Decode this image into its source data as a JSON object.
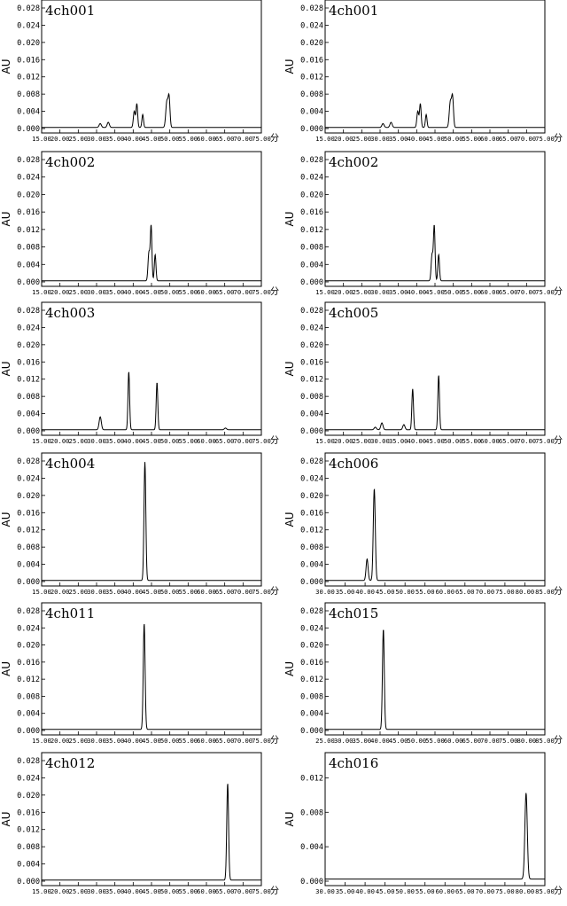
{
  "y_axis_label": "AU",
  "x_unit_label": "分",
  "chart_data": [
    {
      "type": "line",
      "title": "4ch001",
      "xlim": [
        15,
        75
      ],
      "ylim": [
        0,
        0.028
      ],
      "xticks": [
        "15.00",
        "20.00",
        "25.00",
        "30.00",
        "35.00",
        "40.00",
        "45.00",
        "50.00",
        "55.00",
        "60.00",
        "65.00",
        "70.00",
        "75.00"
      ],
      "yticks": [
        "0.000",
        "0.004",
        "0.008",
        "0.012",
        "0.016",
        "0.020",
        "0.024",
        "0.028"
      ],
      "peaks": [
        [
          31.0,
          0.0009,
          0.3
        ],
        [
          33.2,
          0.0012,
          0.3
        ],
        [
          40.3,
          0.0038,
          0.25
        ],
        [
          41.0,
          0.0055,
          0.22
        ],
        [
          42.6,
          0.003,
          0.22
        ],
        [
          49.2,
          0.006,
          0.3
        ],
        [
          49.8,
          0.0068,
          0.25
        ]
      ]
    },
    {
      "type": "line",
      "title": "4ch001",
      "xlim": [
        15,
        75
      ],
      "ylim": [
        0,
        0.028
      ],
      "xticks": [
        "15.00",
        "20.00",
        "25.00",
        "30.00",
        "35.00",
        "40.00",
        "45.00",
        "50.00",
        "55.00",
        "60.00",
        "65.00",
        "70.00",
        "75.00"
      ],
      "yticks": [
        "0.000",
        "0.004",
        "0.008",
        "0.012",
        "0.016",
        "0.020",
        "0.024",
        "0.028"
      ],
      "peaks": [
        [
          30.8,
          0.0009,
          0.3
        ],
        [
          33.0,
          0.0012,
          0.3
        ],
        [
          40.3,
          0.0038,
          0.25
        ],
        [
          41.0,
          0.0055,
          0.22
        ],
        [
          42.6,
          0.003,
          0.22
        ],
        [
          49.2,
          0.006,
          0.3
        ],
        [
          49.8,
          0.0068,
          0.25
        ]
      ]
    },
    {
      "type": "line",
      "title": "4ch002",
      "xlim": [
        15,
        75
      ],
      "ylim": [
        0,
        0.028
      ],
      "xticks": [
        "15.00",
        "20.00",
        "25.00",
        "30.00",
        "35.00",
        "40.00",
        "45.00",
        "50.00",
        "55.00",
        "60.00",
        "65.00",
        "70.00",
        "75.00"
      ],
      "yticks": [
        "0.000",
        "0.004",
        "0.008",
        "0.012",
        "0.016",
        "0.020",
        "0.024",
        "0.028"
      ],
      "peaks": [
        [
          44.3,
          0.0065,
          0.25
        ],
        [
          44.9,
          0.0125,
          0.22
        ],
        [
          46.0,
          0.006,
          0.22
        ]
      ]
    },
    {
      "type": "line",
      "title": "4ch002",
      "xlim": [
        15,
        75
      ],
      "ylim": [
        0,
        0.028
      ],
      "xticks": [
        "15.00",
        "20.00",
        "25.00",
        "30.00",
        "35.00",
        "40.00",
        "45.00",
        "50.00",
        "55.00",
        "60.00",
        "65.00",
        "70.00",
        "75.00"
      ],
      "yticks": [
        "0.000",
        "0.004",
        "0.008",
        "0.012",
        "0.016",
        "0.020",
        "0.024",
        "0.028"
      ],
      "peaks": [
        [
          44.2,
          0.006,
          0.25
        ],
        [
          44.8,
          0.0125,
          0.22
        ],
        [
          46.0,
          0.006,
          0.22
        ]
      ]
    },
    {
      "type": "line",
      "title": "4ch003",
      "xlim": [
        15,
        75
      ],
      "ylim": [
        0,
        0.028
      ],
      "xticks": [
        "15.00",
        "20.00",
        "25.00",
        "30.00",
        "35.00",
        "40.00",
        "45.00",
        "50.00",
        "55.00",
        "60.00",
        "65.00",
        "70.00",
        "75.00"
      ],
      "yticks": [
        "0.000",
        "0.004",
        "0.008",
        "0.012",
        "0.016",
        "0.020",
        "0.024",
        "0.028"
      ],
      "peaks": [
        [
          31.0,
          0.003,
          0.3
        ],
        [
          38.8,
          0.0135,
          0.22
        ],
        [
          46.5,
          0.011,
          0.22
        ],
        [
          65.2,
          0.0004,
          0.3
        ]
      ]
    },
    {
      "type": "line",
      "title": "4ch005",
      "xlim": [
        15,
        75
      ],
      "ylim": [
        0,
        0.028
      ],
      "xticks": [
        "15.00",
        "20.00",
        "25.00",
        "30.00",
        "35.00",
        "40.00",
        "45.00",
        "50.00",
        "55.00",
        "60.00",
        "65.00",
        "70.00",
        "75.00"
      ],
      "yticks": [
        "0.000",
        "0.004",
        "0.008",
        "0.012",
        "0.016",
        "0.020",
        "0.024",
        "0.028"
      ],
      "peaks": [
        [
          28.7,
          0.0006,
          0.3
        ],
        [
          30.5,
          0.0016,
          0.3
        ],
        [
          36.5,
          0.0012,
          0.3
        ],
        [
          38.9,
          0.0095,
          0.22
        ],
        [
          46.0,
          0.0127,
          0.22
        ]
      ]
    },
    {
      "type": "line",
      "title": "4ch004",
      "xlim": [
        15,
        75
      ],
      "ylim": [
        0,
        0.028
      ],
      "xticks": [
        "15.00",
        "20.00",
        "25.00",
        "30.00",
        "35.00",
        "40.00",
        "45.00",
        "50.00",
        "55.00",
        "60.00",
        "65.00",
        "70.00",
        "75.00"
      ],
      "yticks": [
        "0.000",
        "0.004",
        "0.008",
        "0.012",
        "0.016",
        "0.020",
        "0.024",
        "0.028"
      ],
      "peaks": [
        [
          43.2,
          0.0275,
          0.25
        ]
      ]
    },
    {
      "type": "line",
      "title": "4ch006",
      "xlim": [
        30,
        85
      ],
      "ylim": [
        0,
        0.028
      ],
      "xticks": [
        "30.00",
        "35.00",
        "40.00",
        "45.00",
        "50.00",
        "55.00",
        "60.00",
        "65.00",
        "70.00",
        "75.00",
        "80.00",
        "85.00"
      ],
      "yticks": [
        "0.000",
        "0.004",
        "0.008",
        "0.012",
        "0.016",
        "0.020",
        "0.024",
        "0.028"
      ],
      "peaks": [
        [
          40.5,
          0.005,
          0.25
        ],
        [
          42.3,
          0.0213,
          0.25
        ]
      ]
    },
    {
      "type": "line",
      "title": "4ch011",
      "xlim": [
        15,
        75
      ],
      "ylim": [
        0,
        0.028
      ],
      "xticks": [
        "15.00",
        "20.00",
        "25.00",
        "30.00",
        "35.00",
        "40.00",
        "45.00",
        "50.00",
        "55.00",
        "60.00",
        "65.00",
        "70.00",
        "75.00"
      ],
      "yticks": [
        "0.000",
        "0.004",
        "0.008",
        "0.012",
        "0.016",
        "0.020",
        "0.024",
        "0.028"
      ],
      "peaks": [
        [
          43.0,
          0.0248,
          0.25
        ]
      ]
    },
    {
      "type": "line",
      "title": "4ch015",
      "xlim": [
        25,
        85
      ],
      "ylim": [
        0,
        0.028
      ],
      "xticks": [
        "25.00",
        "30.00",
        "35.00",
        "40.00",
        "45.00",
        "50.00",
        "55.00",
        "60.00",
        "65.00",
        "70.00",
        "75.00",
        "80.00",
        "85.00"
      ],
      "yticks": [
        "0.000",
        "0.004",
        "0.008",
        "0.012",
        "0.016",
        "0.020",
        "0.024",
        "0.028"
      ],
      "peaks": [
        [
          40.9,
          0.0235,
          0.25
        ]
      ]
    },
    {
      "type": "line",
      "title": "4ch012",
      "xlim": [
        15,
        75
      ],
      "ylim": [
        0,
        0.028
      ],
      "xticks": [
        "15.00",
        "20.00",
        "25.00",
        "30.00",
        "35.00",
        "40.00",
        "45.00",
        "50.00",
        "55.00",
        "60.00",
        "65.00",
        "70.00",
        "75.00"
      ],
      "yticks": [
        "0.000",
        "0.004",
        "0.008",
        "0.012",
        "0.016",
        "0.020",
        "0.024",
        "0.028"
      ],
      "peaks": [
        [
          65.8,
          0.0225,
          0.25
        ]
      ]
    },
    {
      "type": "line",
      "title": "4ch016",
      "xlim": [
        30,
        85
      ],
      "ylim": [
        0,
        0.014
      ],
      "xticks": [
        "30.00",
        "35.00",
        "40.00",
        "45.00",
        "50.00",
        "55.00",
        "60.00",
        "65.00",
        "70.00",
        "75.00",
        "80.00",
        "85.00"
      ],
      "yticks": [
        "0.000",
        "0.004",
        "0.008",
        "0.012"
      ],
      "peaks": [
        [
          80.3,
          0.01,
          0.3
        ]
      ]
    }
  ]
}
